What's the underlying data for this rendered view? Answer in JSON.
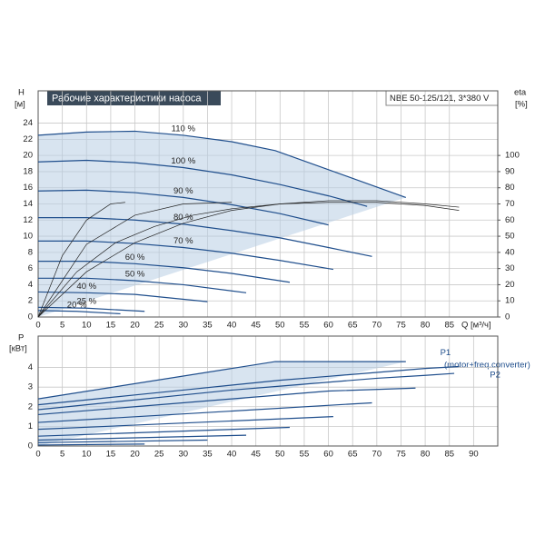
{
  "chart_data": [
    {
      "type": "line",
      "title": "Рабочие характеристики насоса",
      "subtitle": "NBE 50-125/121, 3*380 V",
      "y_label": "H",
      "y_unit": "[м]",
      "y2_label": "eta",
      "y2_unit": "[%]",
      "x_label": "Q [м³/ч]",
      "xlim": [
        0,
        95
      ],
      "xticks": [
        0,
        5,
        10,
        15,
        20,
        25,
        30,
        35,
        40,
        45,
        50,
        55,
        60,
        65,
        70,
        75,
        80,
        85
      ],
      "ylim": [
        0,
        28
      ],
      "yticks": [
        0,
        2,
        4,
        6,
        8,
        10,
        12,
        14,
        16,
        18,
        20,
        22,
        24
      ],
      "y2lim": [
        0,
        140
      ],
      "y2ticks": [
        0,
        10,
        20,
        30,
        40,
        50,
        60,
        70,
        80,
        90,
        100
      ],
      "grid": true,
      "series": [
        {
          "name": "110 %",
          "color": "#1f4e8c",
          "x": [
            0,
            10,
            20,
            30,
            40,
            49,
            76
          ],
          "values": [
            22.5,
            22.9,
            23.0,
            22.5,
            21.7,
            20.6,
            14.8
          ]
        },
        {
          "name": "100 %",
          "color": "#1f4e8c",
          "x": [
            0,
            10,
            20,
            30,
            40,
            50,
            60,
            68
          ],
          "values": [
            19.2,
            19.4,
            19.1,
            18.5,
            17.6,
            16.4,
            15,
            13.7
          ]
        },
        {
          "name": "90 %",
          "color": "#1f4e8c",
          "x": [
            0,
            10,
            20,
            30,
            40,
            50,
            60
          ],
          "values": [
            15.6,
            15.7,
            15.4,
            14.8,
            13.9,
            12.8,
            11.4
          ]
        },
        {
          "name": "80 %",
          "color": "#1f4e8c",
          "x": [
            0,
            10,
            20,
            30,
            40,
            50,
            60,
            69
          ],
          "values": [
            12.3,
            12.3,
            12,
            11.5,
            10.7,
            9.8,
            8.6,
            7.5
          ]
        },
        {
          "name": "70 %",
          "color": "#1f4e8c",
          "x": [
            0,
            10,
            20,
            30,
            40,
            50,
            61
          ],
          "values": [
            9.4,
            9.4,
            9.1,
            8.6,
            7.9,
            7,
            5.9
          ]
        },
        {
          "name": "60 %",
          "color": "#1f4e8c",
          "x": [
            0,
            10,
            20,
            30,
            40,
            52
          ],
          "values": [
            6.9,
            6.9,
            6.6,
            6.1,
            5.4,
            4.3
          ]
        },
        {
          "name": "50 %",
          "color": "#1f4e8c",
          "x": [
            0,
            10,
            20,
            30,
            43
          ],
          "values": [
            4.8,
            4.8,
            4.5,
            4,
            3
          ]
        },
        {
          "name": "40 %",
          "color": "#1f4e8c",
          "x": [
            0,
            10,
            20,
            35
          ],
          "values": [
            3.1,
            3,
            2.8,
            1.9
          ]
        },
        {
          "name": "25 %",
          "color": "#1f4e8c",
          "x": [
            0,
            10,
            22
          ],
          "values": [
            1.2,
            1.1,
            0.7
          ]
        },
        {
          "name": "20 %",
          "color": "#1f4e8c",
          "x": [
            0,
            8,
            17
          ],
          "values": [
            0.8,
            0.7,
            0.4
          ]
        },
        {
          "color": "#222222",
          "axis": "y2",
          "x": [
            0,
            10,
            20,
            30,
            40,
            50,
            60,
            70,
            80,
            87
          ],
          "values": [
            0,
            28,
            46,
            58,
            66,
            70,
            72,
            72,
            70,
            68
          ]
        },
        {
          "color": "#222222",
          "axis": "y2",
          "x": [
            0,
            8,
            16,
            24,
            32,
            40,
            50,
            60,
            70,
            80,
            87
          ],
          "values": [
            0,
            28,
            46,
            56,
            63,
            67,
            70,
            71,
            71,
            69,
            66
          ]
        },
        {
          "color": "#222222",
          "axis": "y2",
          "x": [
            0,
            5,
            10,
            15,
            18
          ],
          "values": [
            0,
            38,
            60,
            70,
            71
          ]
        },
        {
          "color": "#222222",
          "axis": "y2",
          "x": [
            0,
            10,
            20,
            30,
            40
          ],
          "values": [
            0,
            45,
            63,
            70,
            71
          ]
        }
      ]
    },
    {
      "type": "line",
      "y_label": "P",
      "y_unit": "[кВт]",
      "annotation": "(motor+freq.converter)",
      "xlim": [
        0,
        95
      ],
      "xticks": [
        0,
        5,
        10,
        15,
        20,
        25,
        30,
        35,
        40,
        45,
        50,
        55,
        60,
        65,
        70,
        75,
        80,
        85,
        90
      ],
      "ylim": [
        0,
        5.6
      ],
      "yticks": [
        0,
        1,
        2,
        3,
        4
      ],
      "grid": true,
      "series": [
        {
          "color": "#1f4e8c",
          "x": [
            0,
            49,
            76
          ],
          "values": [
            2.4,
            4.3,
            4.3
          ]
        },
        {
          "name": "P1",
          "color": "#1f4e8c",
          "x": [
            0,
            10,
            20,
            30,
            40,
            50,
            60,
            70,
            80,
            87
          ],
          "values": [
            2.1,
            2.35,
            2.6,
            2.85,
            3.1,
            3.35,
            3.55,
            3.75,
            3.95,
            4.05
          ]
        },
        {
          "name": "P2",
          "color": "#1f4e8c",
          "x": [
            0,
            10,
            20,
            30,
            40,
            50,
            60,
            70,
            80,
            86
          ],
          "values": [
            1.85,
            2.1,
            2.35,
            2.6,
            2.85,
            3.05,
            3.25,
            3.45,
            3.6,
            3.7
          ]
        },
        {
          "color": "#1f4e8c",
          "x": [
            0,
            60,
            78
          ],
          "values": [
            1.6,
            2.8,
            2.95
          ]
        },
        {
          "color": "#1f4e8c",
          "x": [
            0,
            69
          ],
          "values": [
            1.2,
            2.2
          ]
        },
        {
          "color": "#1f4e8c",
          "x": [
            0,
            61
          ],
          "values": [
            0.85,
            1.5
          ]
        },
        {
          "color": "#1f4e8c",
          "x": [
            0,
            52
          ],
          "values": [
            0.5,
            0.95
          ]
        },
        {
          "color": "#1f4e8c",
          "x": [
            0,
            43
          ],
          "values": [
            0.3,
            0.55
          ]
        },
        {
          "color": "#1f4e8c",
          "x": [
            0,
            35
          ],
          "values": [
            0.17,
            0.3
          ]
        },
        {
          "color": "#1f4e8c",
          "x": [
            0,
            22
          ],
          "values": [
            0.05,
            0.1
          ]
        }
      ]
    }
  ]
}
